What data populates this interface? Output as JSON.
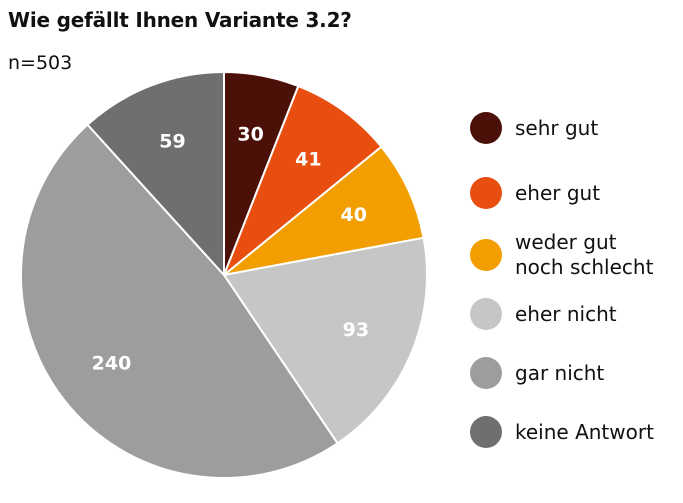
{
  "chart_data": {
    "type": "pie",
    "title": "Wie gefällt Ihnen Variante 3.2?",
    "subtitle": "n=503",
    "total": 503,
    "slices": [
      {
        "label": "sehr gut",
        "value": 30,
        "color": "#4b1008"
      },
      {
        "label": "eher gut",
        "value": 41,
        "color": "#e84e0f"
      },
      {
        "label": "weder gut noch schlecht",
        "value": 40,
        "color": "#f29e00"
      },
      {
        "label": "eher nicht",
        "value": 93,
        "color": "#c6c6c6"
      },
      {
        "label": "gar nicht",
        "value": 240,
        "color": "#9d9d9c"
      },
      {
        "label": "keine Antwort",
        "value": 59,
        "color": "#706f6f"
      }
    ],
    "start": "12 o'clock",
    "direction": "clockwise",
    "legend": "right"
  }
}
